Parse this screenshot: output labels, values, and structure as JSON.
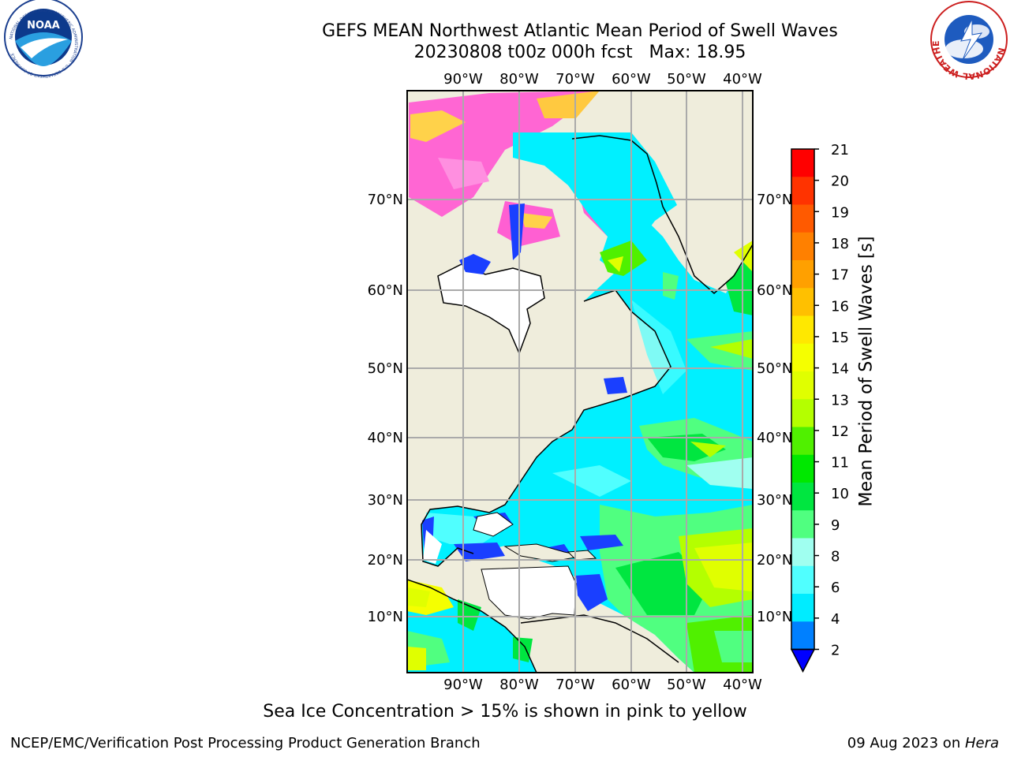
{
  "header": {
    "title_line1": "GEFS MEAN Northwest Atlantic Mean Period of Swell Waves",
    "title_line2": "20230808 t00z 000h fcst   Max: 18.95"
  },
  "logos": {
    "noaa_text": "NOAA",
    "noaa_ring_text": "NATIONAL OCEANIC AND ATMOSPHERIC ADMINISTRATION · U.S. DEPARTMENT OF COMMERCE",
    "nws_ring_text": "NATIONAL WEATHER SERVICE"
  },
  "map": {
    "lon_labels": [
      "90°W",
      "80°W",
      "70°W",
      "60°W",
      "50°W",
      "40°W"
    ],
    "lat_labels": [
      "70°N",
      "60°N",
      "50°N",
      "40°N",
      "30°N",
      "20°N",
      "10°N"
    ],
    "land_color": "#efeddc",
    "ocean_base_color": "#00f0ff"
  },
  "colorbar": {
    "title": "Mean Period of Swell Waves [s]",
    "ticks": [
      "21",
      "20",
      "19",
      "18",
      "17",
      "16",
      "15",
      "14",
      "13",
      "12",
      "11",
      "10",
      "9",
      "8",
      "6",
      "4",
      "2"
    ],
    "colors_top_to_bottom": [
      "#ff0000",
      "#ff3300",
      "#ff5a00",
      "#ff8000",
      "#ffa000",
      "#ffc000",
      "#ffe800",
      "#f5ff00",
      "#e0ff00",
      "#b4ff00",
      "#50f000",
      "#00e800",
      "#00e640",
      "#50ff80",
      "#a0fff0",
      "#50ffff",
      "#00ecff",
      "#0080ff"
    ],
    "extend_color": "#0000ff"
  },
  "caption": "Sea Ice Concentration > 15% is shown in pink to yellow",
  "footer": {
    "left": "NCEP/EMC/Verification Post Processing Product Generation Branch",
    "right_date": "09 Aug 2023 on ",
    "right_host": "Hera"
  }
}
